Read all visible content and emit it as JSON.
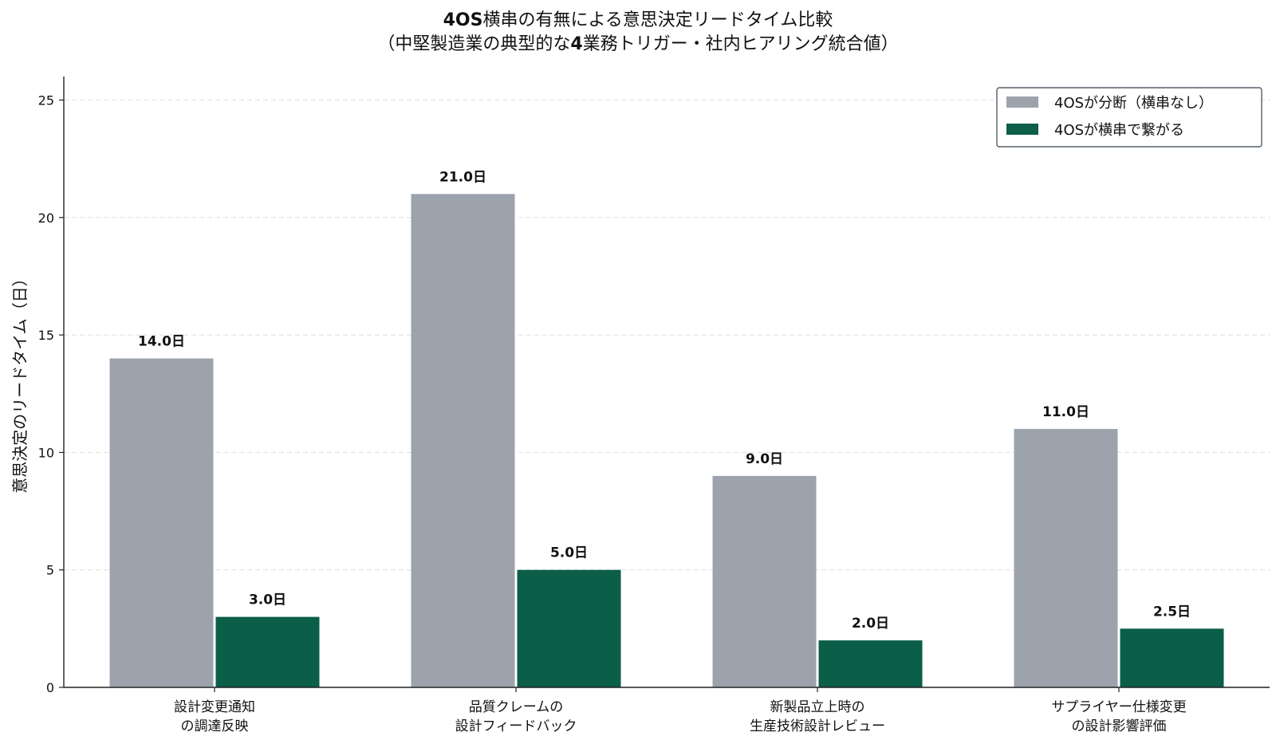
{
  "chart_data": {
    "type": "bar",
    "title_lines": [
      {
        "bold_prefix": "4OS",
        "text": "横串の有無による意思決定リードタイム比較"
      },
      {
        "prefix": "（中堅製造業の典型的な",
        "bold_mid": "4",
        "text": "業務トリガー・社内ヒアリング統合値）"
      }
    ],
    "ylabel": "意思決定のリードタイム（日）",
    "ylim": [
      0,
      26
    ],
    "yticks": [
      0,
      5,
      10,
      15,
      20,
      25
    ],
    "grid": "y-dashed",
    "legend_position": "top-right",
    "categories": [
      [
        "設計変更通知",
        "の調達反映"
      ],
      [
        "品質クレームの",
        "設計フィードバック"
      ],
      [
        "新製品立上時の",
        "生産技術設計レビュー"
      ],
      [
        "サプライヤー仕様変更",
        "の設計影響評価"
      ]
    ],
    "series": [
      {
        "name": "4OSが分断（横串なし）",
        "color": "#9ca3ad",
        "values": [
          14.0,
          21.0,
          9.0,
          11.0
        ],
        "labels": [
          "14.0日",
          "21.0日",
          "9.0日",
          "11.0日"
        ]
      },
      {
        "name": "4OSが横串で繋がる",
        "color": "#0b5e47",
        "values": [
          3.0,
          5.0,
          2.0,
          2.5
        ],
        "labels": [
          "3.0日",
          "5.0日",
          "2.0日",
          "2.5日"
        ]
      }
    ]
  }
}
